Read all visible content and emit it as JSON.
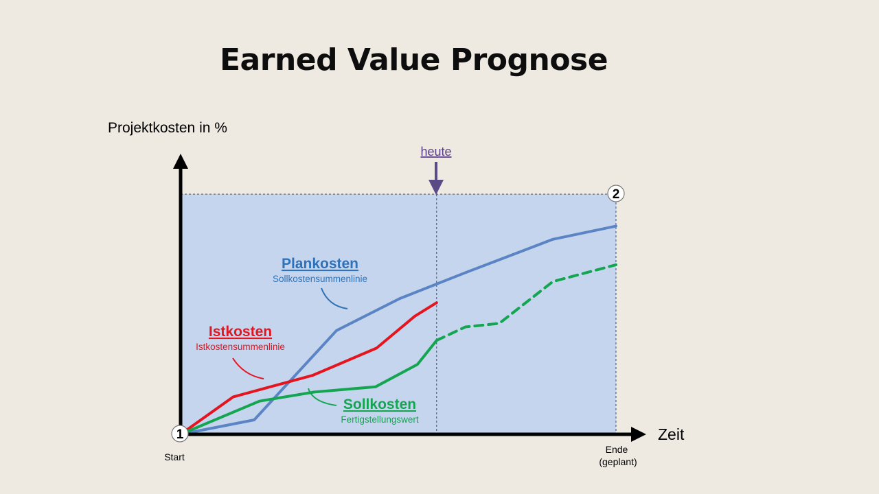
{
  "page": {
    "title": "Earned Value Prognose"
  },
  "chart_data": {
    "type": "line",
    "ylabel": "Projektkosten in %",
    "xlabel": "Zeit",
    "x_start_label": "Start",
    "x_end_label_line1": "Ende",
    "x_end_label_line2": "(geplant)",
    "today_label": "heute",
    "marker_start": "1",
    "marker_end": "2",
    "xlim": [
      0,
      100
    ],
    "ylim": [
      0,
      100
    ],
    "today_x": 58.8,
    "planned_end_x": 100,
    "series": [
      {
        "name": "Plankosten",
        "subtitle": "Sollkostensummenlinie",
        "color": "#5b84c4",
        "style": "solid",
        "x": [
          0,
          16.9,
          35.8,
          50.3,
          65.4,
          85.5,
          100
        ],
        "y": [
          0,
          6.0,
          43.2,
          56.5,
          67.3,
          81.2,
          86.7
        ]
      },
      {
        "name": "Istkosten",
        "subtitle": "Istkostensummenlinie",
        "color": "#e4151f",
        "style": "solid",
        "x": [
          0,
          12.1,
          30.4,
          45.0,
          53.8,
          58.8
        ],
        "y": [
          0,
          15.6,
          24.6,
          35.9,
          49.2,
          54.8
        ]
      },
      {
        "name": "Sollkosten",
        "subtitle": "Fertigstellungswert",
        "color": "#14a550",
        "style": "solid",
        "x": [
          0,
          18.1,
          30.7,
          44.8,
          54.4,
          58.8
        ],
        "y": [
          0,
          13.8,
          17.6,
          19.8,
          29.1,
          39.1
        ]
      },
      {
        "name": "",
        "color": "#14a550",
        "style": "dashed",
        "x": [
          58.8,
          65.4,
          73.2,
          85.5,
          100
        ],
        "y": [
          39.1,
          44.7,
          46.2,
          63.6,
          70.6
        ]
      }
    ]
  }
}
